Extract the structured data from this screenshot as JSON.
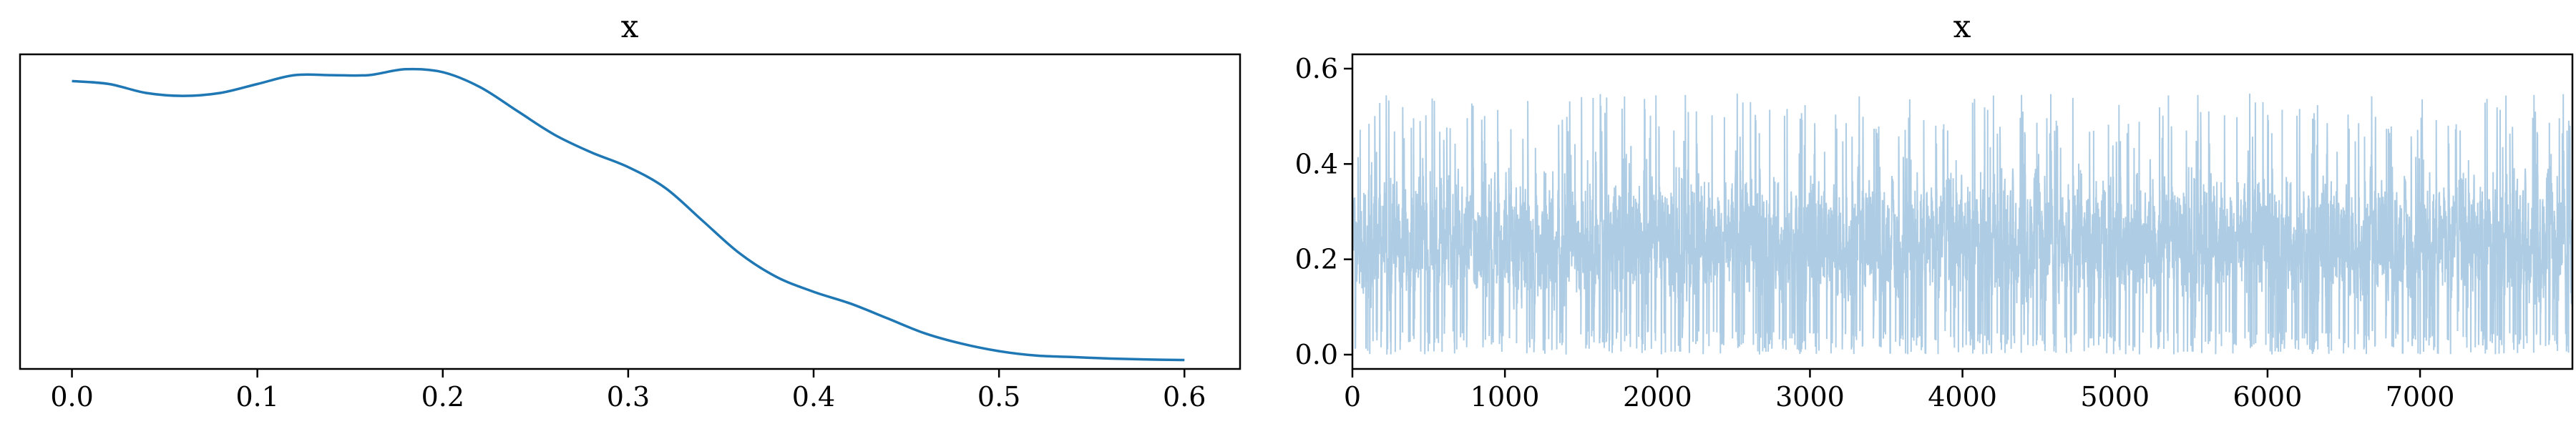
{
  "chart_data": [
    {
      "type": "line",
      "title": "x",
      "xlabel": "",
      "ylabel": "",
      "xlim": [
        -0.028,
        0.63
      ],
      "ylim": [
        0,
        1.06
      ],
      "grid": false,
      "x_ticks": [
        0.0,
        0.1,
        0.2,
        0.3,
        0.4,
        0.5,
        0.6
      ],
      "x_tick_labels": [
        "0.0",
        "0.1",
        "0.2",
        "0.3",
        "0.4",
        "0.5",
        "0.6"
      ],
      "y_ticks": [],
      "color": "#1f77b4",
      "series": [
        {
          "x": [
            0.0,
            0.02,
            0.04,
            0.06,
            0.08,
            0.1,
            0.12,
            0.14,
            0.16,
            0.18,
            0.2,
            0.22,
            0.24,
            0.26,
            0.28,
            0.3,
            0.32,
            0.34,
            0.36,
            0.38,
            0.4,
            0.42,
            0.44,
            0.46,
            0.48,
            0.5,
            0.52,
            0.54,
            0.56,
            0.58,
            0.6
          ],
          "values": [
            0.97,
            0.96,
            0.93,
            0.92,
            0.93,
            0.96,
            0.99,
            0.99,
            0.99,
            1.01,
            1.0,
            0.95,
            0.87,
            0.79,
            0.73,
            0.68,
            0.61,
            0.5,
            0.39,
            0.31,
            0.26,
            0.22,
            0.17,
            0.12,
            0.085,
            0.06,
            0.045,
            0.04,
            0.035,
            0.032,
            0.03
          ]
        }
      ]
    },
    {
      "type": "line",
      "title": "x",
      "xlabel": "",
      "ylabel": "",
      "xlim": [
        0,
        7999
      ],
      "ylim": [
        -0.03,
        0.63
      ],
      "grid": false,
      "x_ticks": [
        0,
        1000,
        2000,
        3000,
        4000,
        5000,
        6000,
        7000
      ],
      "x_tick_labels": [
        "0",
        "1000",
        "2000",
        "3000",
        "4000",
        "5000",
        "6000",
        "7000"
      ],
      "y_ticks": [
        0.0,
        0.2,
        0.4,
        0.6
      ],
      "y_tick_labels": [
        "0.0",
        "0.2",
        "0.4",
        "0.6"
      ],
      "color": "#aecde4",
      "series": [
        {
          "n_samples": 8000,
          "x_start": 0,
          "x_end": 7999,
          "value_min": 0.0,
          "value_max": 0.6,
          "value_typical_range": [
            0.05,
            0.45
          ]
        }
      ]
    }
  ]
}
